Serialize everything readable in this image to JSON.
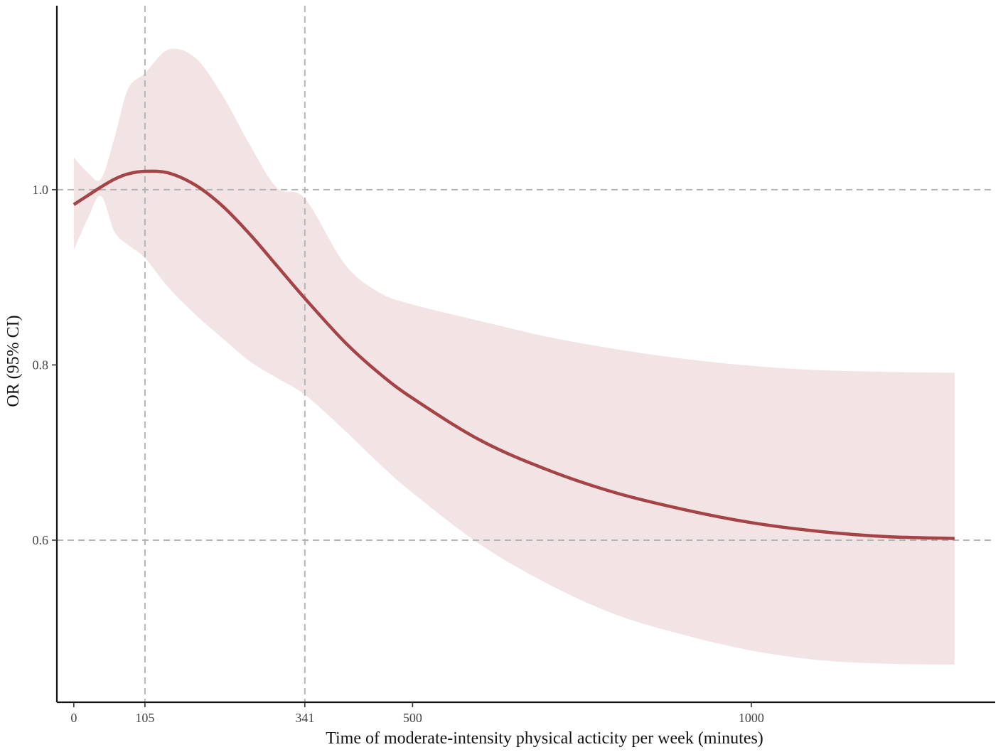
{
  "chart_data": {
    "type": "line",
    "title": "",
    "xlabel": "Time of moderate-intensity physical acticity per week (minutes)",
    "ylabel": "OR (95% CI)",
    "xlim": [
      -25,
      1360
    ],
    "ylim": [
      0.415,
      1.21
    ],
    "x_ticks": [
      0,
      105,
      341,
      500,
      1000
    ],
    "x_tick_labels": [
      "0",
      "105",
      "341",
      "500",
      "1000"
    ],
    "y_ticks": [
      0.6,
      0.8,
      1.0
    ],
    "y_tick_labels": [
      "0.6",
      "0.8",
      "1.0"
    ],
    "reference_lines": {
      "x": [
        105,
        341
      ],
      "y": [
        0.6,
        1.0
      ]
    },
    "grid": false,
    "colors": {
      "line": "#a54446",
      "ci_band": "#f2e3e5",
      "ref_line": "#b5b5b5",
      "axis": "#111111"
    },
    "series": [
      {
        "x": [
          0,
          20,
          40,
          60,
          80,
          105,
          140,
          180,
          220,
          260,
          300,
          341,
          400,
          450,
          500,
          600,
          700,
          800,
          900,
          1000,
          1100,
          1200,
          1300
        ],
        "y": [
          0.983,
          0.993,
          1.003,
          1.012,
          1.018,
          1.021,
          1.019,
          1.005,
          0.981,
          0.949,
          0.913,
          0.876,
          0.826,
          0.791,
          0.762,
          0.714,
          0.68,
          0.654,
          0.635,
          0.62,
          0.61,
          0.604,
          0.602
        ],
        "lower": [
          0.931,
          0.966,
          0.993,
          0.952,
          0.937,
          0.922,
          0.888,
          0.857,
          0.83,
          0.804,
          0.785,
          0.766,
          0.725,
          0.688,
          0.654,
          0.595,
          0.55,
          0.515,
          0.492,
          0.474,
          0.463,
          0.459,
          0.458
        ],
        "upper": [
          1.037,
          1.02,
          1.012,
          1.059,
          1.115,
          1.133,
          1.16,
          1.15,
          1.107,
          1.051,
          1.002,
          0.99,
          0.915,
          0.883,
          0.869,
          0.85,
          0.832,
          0.818,
          0.807,
          0.799,
          0.794,
          0.792,
          0.791
        ]
      }
    ]
  }
}
